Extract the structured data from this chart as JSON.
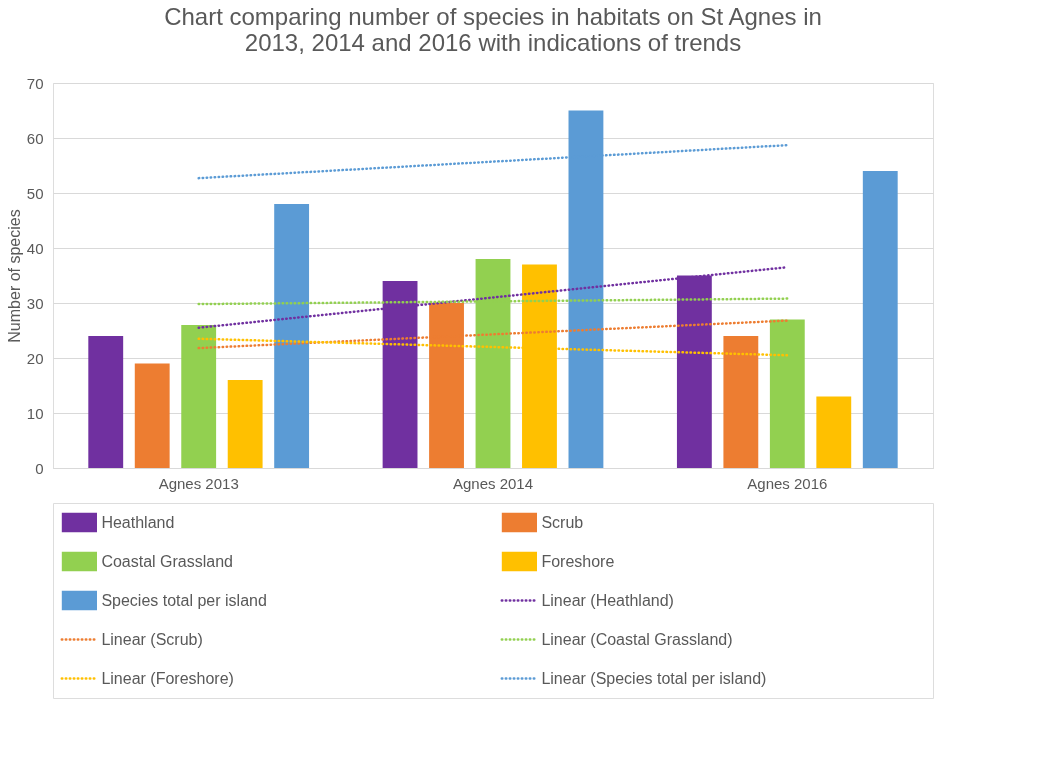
{
  "chart_data": {
    "type": "bar",
    "title": "Chart comparing number of species in habitats on St Agnes in 2013, 2014 and 2016 with indications of trends",
    "ylabel": "Number of species",
    "categories": [
      "Agnes 2013",
      "Agnes 2014",
      "Agnes 2016"
    ],
    "series": [
      {
        "name": "Heathland",
        "color": "#7030a0",
        "values": [
          24,
          34,
          35
        ]
      },
      {
        "name": "Scrub",
        "color": "#ed7d31",
        "values": [
          19,
          30,
          24
        ]
      },
      {
        "name": "Coastal Grassland",
        "color": "#92d050",
        "values": [
          26,
          38,
          27
        ]
      },
      {
        "name": "Foreshore",
        "color": "#ffc000",
        "values": [
          16,
          37,
          13
        ]
      },
      {
        "name": "Species total per island",
        "color": "#5b9bd5",
        "values": [
          48,
          65,
          54
        ]
      },
      {
        "name": "Linear (Heathland)",
        "type": "line",
        "line_style": "dotted",
        "color": "#7030a0",
        "x": [
          "Agnes 2013",
          "Agnes 2014",
          "Agnes 2016"
        ],
        "values": [
          25.5,
          31,
          36.5
        ]
      },
      {
        "name": "Linear (Scrub)",
        "type": "line",
        "line_style": "dotted",
        "color": "#ed7d31",
        "x": [
          "Agnes 2013",
          "Agnes 2014",
          "Agnes 2016"
        ],
        "values": [
          21.8,
          24.3,
          26.8
        ]
      },
      {
        "name": "Linear (Coastal Grassland)",
        "type": "line",
        "line_style": "dotted",
        "color": "#92d050",
        "x": [
          "Agnes 2013",
          "Agnes 2014",
          "Agnes 2016"
        ],
        "values": [
          29.8,
          30.3,
          30.8
        ]
      },
      {
        "name": "Linear (Foreshore)",
        "type": "line",
        "line_style": "dotted",
        "color": "#ffc000",
        "x": [
          "Agnes 2013",
          "Agnes 2014",
          "Agnes 2016"
        ],
        "values": [
          23.5,
          22,
          20.5
        ]
      },
      {
        "name": "Linear (Species total per island)",
        "type": "line",
        "line_style": "dotted",
        "color": "#5b9bd5",
        "x": [
          "Agnes 2013",
          "Agnes 2014",
          "Agnes 2016"
        ],
        "values": [
          52.7,
          55.7,
          58.7
        ]
      }
    ],
    "ylim": [
      0,
      70
    ],
    "yticks": [
      0,
      10,
      20,
      30,
      40,
      50,
      60,
      70
    ],
    "grid": "y",
    "legend": "bottom",
    "marker": "none"
  }
}
